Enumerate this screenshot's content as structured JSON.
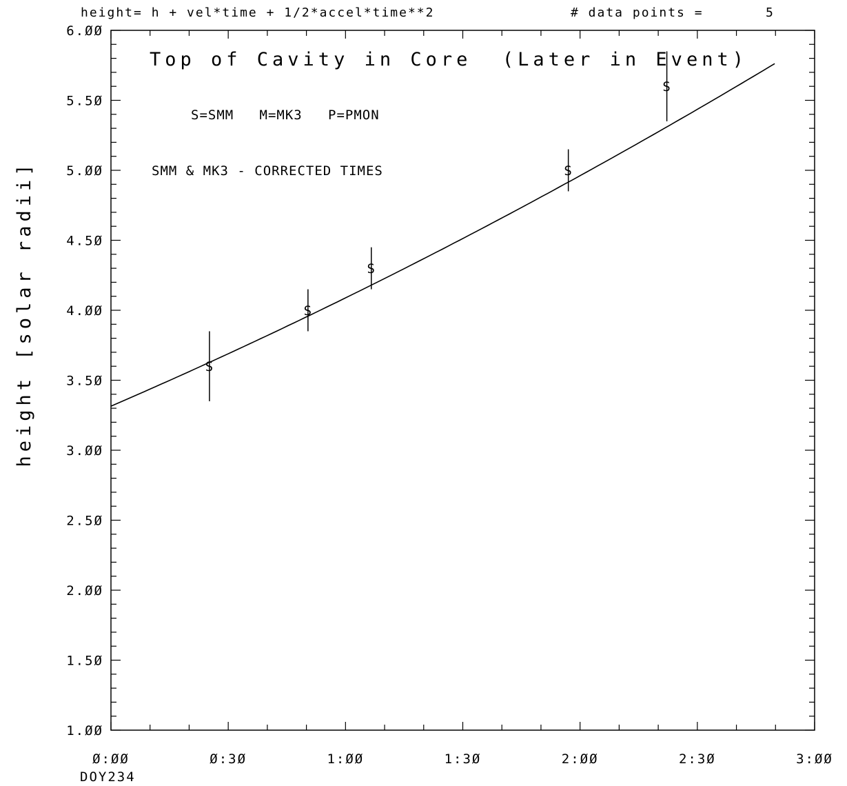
{
  "header": {
    "formula": "height= h + vel*time + 1/2*accel*time**2",
    "points_label": "# data points =",
    "points_count": "5"
  },
  "chart_data": {
    "type": "scatter",
    "title": "Top of Cavity in Core  (Later in Event)",
    "legend_text": "S=SMM   M=MK3   P=PMON",
    "note": "SMM & MK3 - CORRECTED TIMES",
    "ylabel": "height [solar radii]",
    "xlabel": "",
    "x_start_label": "DOY234",
    "x_unit": "hours",
    "xlim": [
      0,
      3
    ],
    "ylim": [
      1,
      6
    ],
    "x_ticks": [
      0,
      0.5,
      1,
      1.5,
      2,
      2.5,
      3
    ],
    "x_tick_labels": [
      "Ø:ØØ",
      "Ø:3Ø",
      "1:ØØ",
      "1:3Ø",
      "2:ØØ",
      "2:3Ø",
      "3:ØØ"
    ],
    "y_ticks": [
      1,
      1.5,
      2,
      2.5,
      3,
      3.5,
      4,
      4.5,
      5,
      5.5,
      6
    ],
    "y_tick_labels": [
      "1.ØØ",
      "1.5Ø",
      "2.ØØ",
      "2.5Ø",
      "3.ØØ",
      "3.5Ø",
      "4.ØØ",
      "4.5Ø",
      "5.ØØ",
      "5.5Ø",
      "6.ØØ"
    ],
    "grid": false,
    "series": [
      {
        "marker": "S",
        "points": [
          {
            "x": 0.42,
            "y": 3.6,
            "ylow": 3.35,
            "yhigh": 3.85
          },
          {
            "x": 0.84,
            "y": 4.0,
            "ylow": 3.85,
            "yhigh": 4.15
          },
          {
            "x": 1.11,
            "y": 4.3,
            "ylow": 4.15,
            "yhigh": 4.45
          },
          {
            "x": 1.95,
            "y": 5.0,
            "ylow": 4.85,
            "yhigh": 5.15
          },
          {
            "x": 2.37,
            "y": 5.6,
            "ylow": 5.35,
            "yhigh": 5.85
          }
        ]
      }
    ],
    "fit": {
      "h": 3.315,
      "vel": 0.7235,
      "accel": 0.0998,
      "x_range": [
        0,
        2.83
      ]
    }
  }
}
